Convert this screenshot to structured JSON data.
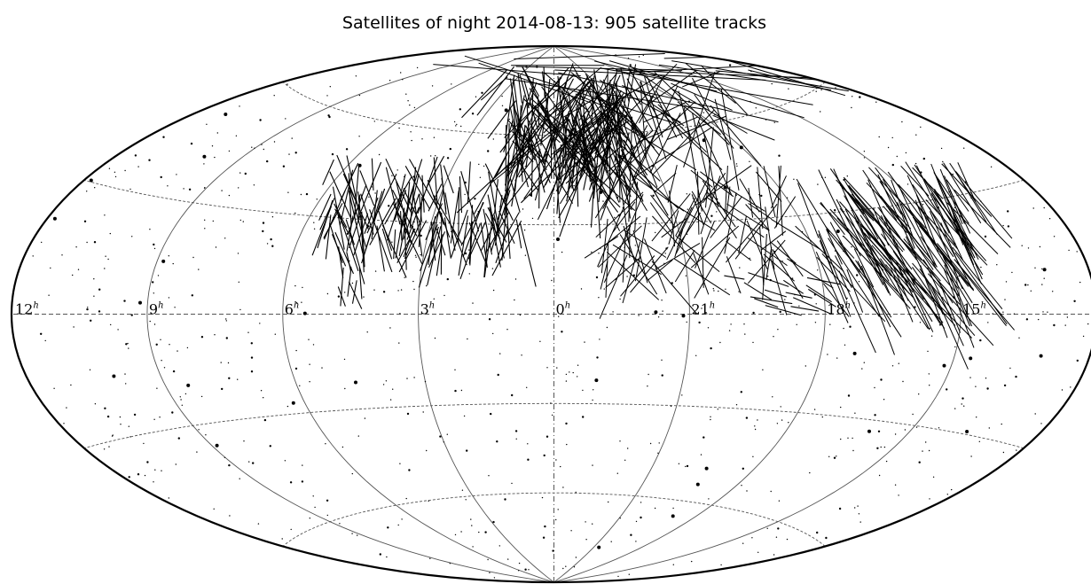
{
  "chart_data": {
    "type": "scatter",
    "projection": "aitoff",
    "title": "Satellites of night 2014-08-13: 905 satellite tracks",
    "ra_tick_labels": [
      {
        "hours": 12,
        "text": "12",
        "unit": "h"
      },
      {
        "hours": 9,
        "text": "9",
        "unit": "h"
      },
      {
        "hours": 6,
        "text": "6",
        "unit": "h"
      },
      {
        "hours": 3,
        "text": "3",
        "unit": "h"
      },
      {
        "hours": 0,
        "text": "0",
        "unit": "h"
      },
      {
        "hours": 21,
        "text": "21",
        "unit": "h"
      },
      {
        "hours": 18,
        "text": "18",
        "unit": "h"
      },
      {
        "hours": 15,
        "text": "15",
        "unit": "h"
      }
    ],
    "meridian_hours": [
      12,
      9,
      6,
      3,
      0,
      21,
      18,
      15
    ],
    "parallels_deg": [
      -60,
      -30,
      0,
      30,
      60
    ],
    "grid": true,
    "track_count": 905,
    "colors": {
      "outline": "#000000",
      "grid": "#555555",
      "tracks": "#000000",
      "stars": "#000000",
      "background": "#ffffff"
    }
  }
}
